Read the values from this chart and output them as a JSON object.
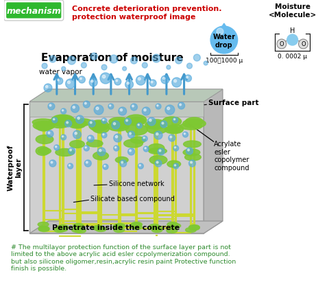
{
  "bg_color": "#ffffff",
  "mechanism_label": "mechanism",
  "mechanism_bg": "#2eb82e",
  "mechanism_text_color": "#ffffff",
  "header_red_line1": "Concrete deterioration prevention.",
  "header_red_line2": "protection waterproof image",
  "header_red_color": "#cc0000",
  "evaporation_title": "Evaporation of moisture",
  "water_vapor_label": "water vapor",
  "surface_part_label": "Surface part",
  "waterproof_layer_label": "Waterproof\nlayer",
  "penetrate_label": "Penetrate inside the concrete",
  "silicone_network_label": "Silicone network",
  "silicate_label": "Silicate based compound",
  "acrylate_label": "Acrylate\nesler\ncopolymer\ncompound",
  "water_drop_label": "Water\ndrop",
  "water_drop_size": "100～1000 μ",
  "moisture_label": "Moisture\n<Molecule>",
  "moisture_size": "0. 0002 μ",
  "footer_color": "#2e8b2e",
  "footer_text": "# The multilayor protection function of the surface layer part is not\nlimited to the above acrylic acid esler ccpolymerization compound.\nbut also silicone oligomer,resin,acrylic resin paint Protective function\nfinish is possible.",
  "stem_color": "#ccd832",
  "blob_color": "#7ec832",
  "bubble_color": "#55aadd",
  "arrow_color": "#4499cc"
}
